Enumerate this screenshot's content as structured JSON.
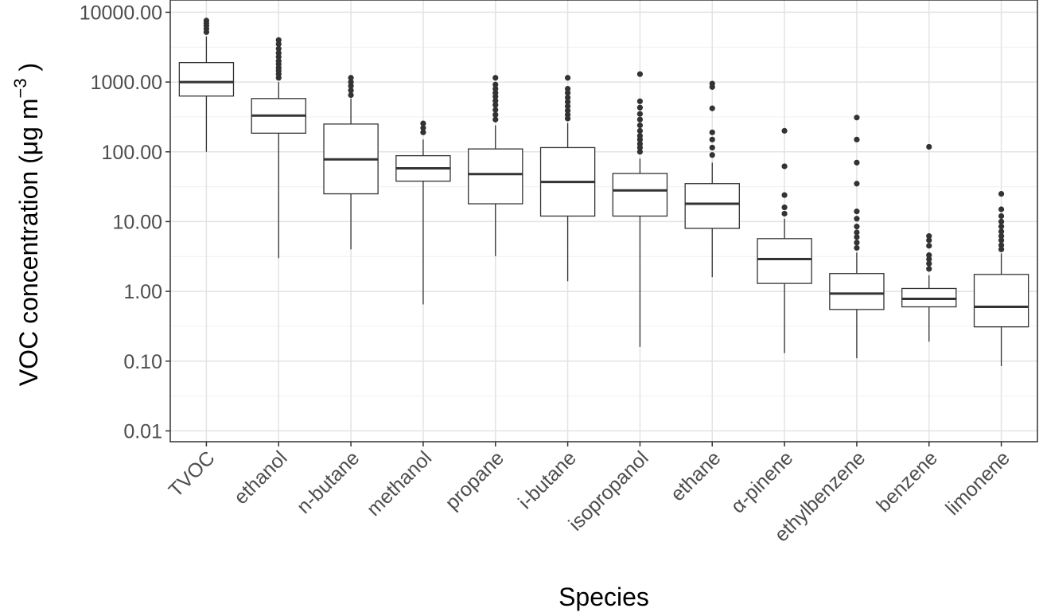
{
  "chart_data": {
    "type": "box",
    "title": "",
    "xlabel": "Species",
    "ylabel": {
      "main": "VOC concentration (μg m",
      "sup": "−3",
      "close": " )"
    },
    "y_scale": "log10",
    "ylim": [
      0.007,
      15000
    ],
    "y_ticks": [
      {
        "value": 0.01,
        "label": "0.01"
      },
      {
        "value": 0.1,
        "label": "0.10"
      },
      {
        "value": 1,
        "label": "1.00"
      },
      {
        "value": 10,
        "label": "10.00"
      },
      {
        "value": 100,
        "label": "100.00"
      },
      {
        "value": 1000,
        "label": "1000.00"
      },
      {
        "value": 10000,
        "label": "10000.00"
      }
    ],
    "grid": true,
    "legend": "none",
    "categories": [
      "TVOC",
      "ethanol",
      "n-butane",
      "methanol",
      "propane",
      "i-butane",
      "isopropanol",
      "ethane",
      "α-pinene",
      "ethylbenzene",
      "benzene",
      "limonene"
    ],
    "boxes": [
      {
        "category": "TVOC",
        "min": 100,
        "q1": 630,
        "median": 1000,
        "q3": 1900,
        "max": 4500,
        "outliers": [
          5200,
          5800,
          6400,
          7000,
          7600
        ]
      },
      {
        "category": "ethanol",
        "min": 3.0,
        "q1": 185,
        "median": 330,
        "q3": 580,
        "max": 1000,
        "outliers": [
          1150,
          1300,
          1450,
          1600,
          1800,
          2000,
          2300,
          2600,
          3000,
          3500,
          4000
        ]
      },
      {
        "category": "n-butane",
        "min": 4.0,
        "q1": 25,
        "median": 78,
        "q3": 250,
        "max": 580,
        "outliers": [
          650,
          760,
          880,
          1000,
          1150
        ]
      },
      {
        "category": "methanol",
        "min": 0.65,
        "q1": 38,
        "median": 58,
        "q3": 88,
        "max": 150,
        "outliers": [
          190,
          220,
          255
        ]
      },
      {
        "category": "propane",
        "min": 3.2,
        "q1": 18,
        "median": 48,
        "q3": 110,
        "max": 240,
        "outliers": [
          290,
          340,
          400,
          470,
          540,
          620,
          700,
          800,
          920,
          1150
        ]
      },
      {
        "category": "i-butane",
        "min": 1.4,
        "q1": 12,
        "median": 37,
        "q3": 115,
        "max": 260,
        "outliers": [
          300,
          340,
          390,
          450,
          520,
          600,
          700,
          800,
          1150
        ]
      },
      {
        "category": "isopropanol",
        "min": 0.16,
        "q1": 12,
        "median": 28,
        "q3": 49,
        "max": 80,
        "outliers": [
          100,
          115,
          130,
          150,
          170,
          200,
          240,
          290,
          350,
          430,
          530,
          1300
        ]
      },
      {
        "category": "ethane",
        "min": 1.6,
        "q1": 8,
        "median": 18,
        "q3": 35,
        "max": 70,
        "outliers": [
          90,
          115,
          150,
          190,
          420,
          850,
          950
        ]
      },
      {
        "category": "α-pinene",
        "min": 0.13,
        "q1": 1.3,
        "median": 2.9,
        "q3": 5.7,
        "max": 11,
        "outliers": [
          13,
          16,
          24,
          62,
          200
        ]
      },
      {
        "category": "ethylbenzene",
        "min": 0.11,
        "q1": 0.55,
        "median": 0.93,
        "q3": 1.8,
        "max": 3.6,
        "outliers": [
          4.2,
          5.0,
          6.0,
          7.0,
          8.5,
          11,
          14,
          35,
          70,
          150,
          310
        ]
      },
      {
        "category": "benzene",
        "min": 0.19,
        "q1": 0.6,
        "median": 0.78,
        "q3": 1.1,
        "max": 1.7,
        "outliers": [
          2.1,
          2.5,
          2.9,
          3.3,
          4.5,
          5.4,
          6.2,
          118
        ]
      },
      {
        "category": "limonene",
        "min": 0.085,
        "q1": 0.31,
        "median": 0.6,
        "q3": 1.75,
        "max": 3.5,
        "outliers": [
          4.0,
          4.6,
          5.4,
          6.2,
          7.2,
          8.5,
          10,
          12,
          15,
          25
        ]
      }
    ]
  }
}
